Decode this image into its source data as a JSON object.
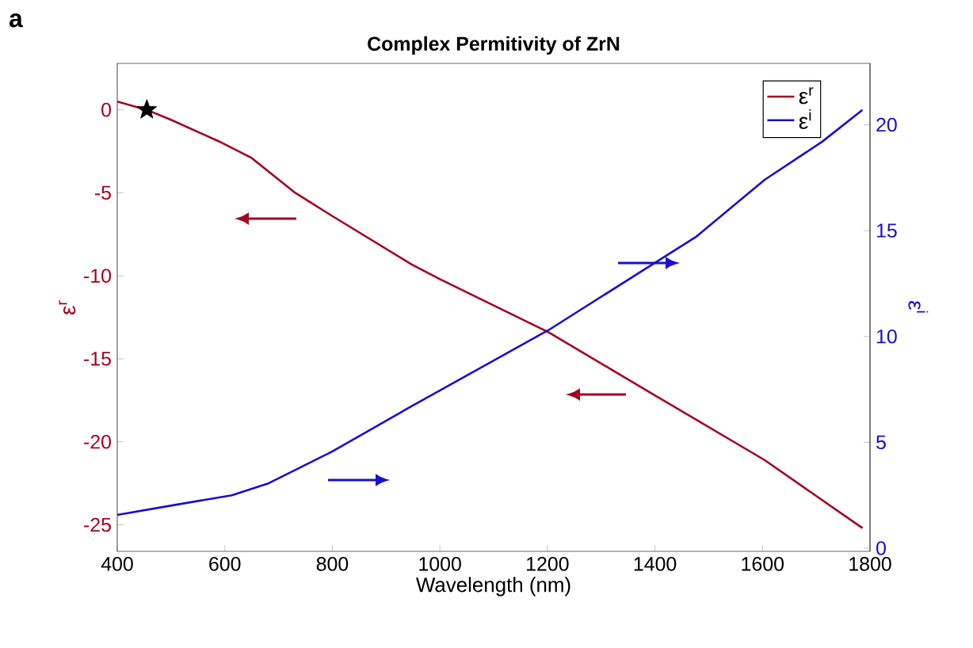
{
  "chart_data": {
    "type": "line",
    "title": "Complex Permitivity of ZrN",
    "xlabel": "Wavelength (nm)",
    "ylabel": "ε$^{r}$",
    "y2label": "ε$^{i}$",
    "annotations": [
      "a"
    ],
    "xlim": [
      400,
      1800
    ],
    "xticks": [
      400,
      600,
      800,
      1000,
      1200,
      1400,
      1600,
      1800
    ],
    "ylim": [
      -26.6,
      2.8
    ],
    "yticks": [
      -25,
      -20,
      -15,
      -10,
      -5,
      0
    ],
    "y2lim": [
      -0.15,
      22.9
    ],
    "y2ticks": [
      0,
      5,
      10,
      15,
      20
    ],
    "legend": "top right",
    "series": [
      {
        "name": "ε$^{r}$",
        "color": "#a50021",
        "x": [
          400,
          455,
          500,
          589,
          650,
          731,
          800,
          947,
          1000,
          1202,
          1400,
          1604,
          1786
        ],
        "values": [
          0.5,
          0,
          -0.6,
          -1.9,
          -2.9,
          -5.0,
          -6.4,
          -9.3,
          -10.2,
          -13.4,
          -17.2,
          -21.1,
          -25.2
        ]
      },
      {
        "name": "ε$^{i}$",
        "color": "#1a0fcc",
        "axis": "y2",
        "x": [
          400,
          486,
          613,
          682,
          800,
          947,
          1202,
          1476,
          1604,
          1711,
          1786
        ],
        "values": [
          1.57,
          1.95,
          2.5,
          3.07,
          4.57,
          6.7,
          10.3,
          14.7,
          17.4,
          19.2,
          20.7
        ]
      },
      {
        "type": "scatter",
        "marker": "star",
        "color": "#000000",
        "x": [
          455
        ],
        "values": [
          0
        ]
      }
    ]
  }
}
